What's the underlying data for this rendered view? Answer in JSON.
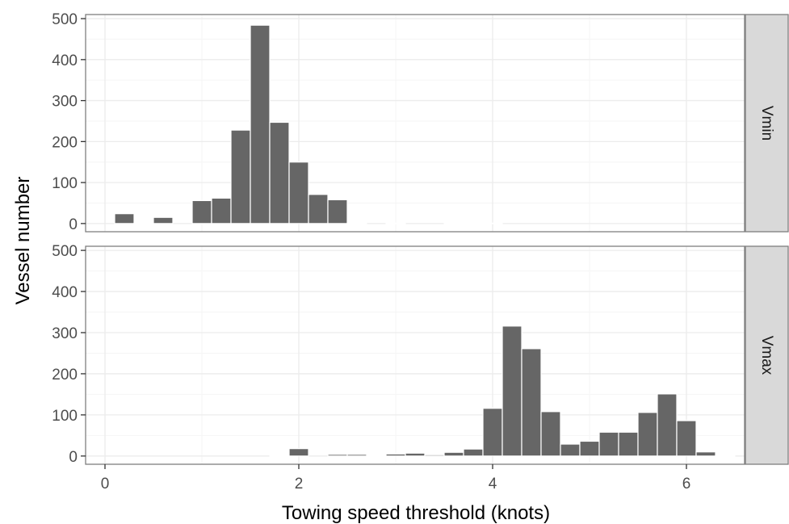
{
  "chart_data": {
    "type": "bar",
    "xlabel": "Towing speed threshold (knots)",
    "ylabel": "Vessel number",
    "xlim": [
      -0.2,
      6.6
    ],
    "ylim": [
      -20,
      510
    ],
    "xticks": [
      0,
      2,
      4,
      6
    ],
    "yticks": [
      0,
      100,
      200,
      300,
      400,
      500
    ],
    "bin_width": 0.2,
    "grid": true,
    "facet_strip_position": "right",
    "bar_color": "#666666",
    "panels": [
      {
        "name": "Vmin",
        "bins": [
          {
            "x": 0.2,
            "y": 24
          },
          {
            "x": 0.4,
            "y": 1
          },
          {
            "x": 0.6,
            "y": 15
          },
          {
            "x": 1.0,
            "y": 56
          },
          {
            "x": 1.2,
            "y": 62
          },
          {
            "x": 1.4,
            "y": 228
          },
          {
            "x": 1.6,
            "y": 484
          },
          {
            "x": 1.8,
            "y": 247
          },
          {
            "x": 2.0,
            "y": 150
          },
          {
            "x": 2.2,
            "y": 71
          },
          {
            "x": 2.4,
            "y": 58
          },
          {
            "x": 2.6,
            "y": 1
          },
          {
            "x": 3.0,
            "y": 1
          },
          {
            "x": 3.6,
            "y": 1
          },
          {
            "x": 3.8,
            "y": 1
          },
          {
            "x": 4.0,
            "y": 1
          }
        ]
      },
      {
        "name": "Vmax",
        "bins": [
          {
            "x": 1.8,
            "y": 1
          },
          {
            "x": 2.0,
            "y": 18
          },
          {
            "x": 2.4,
            "y": 4
          },
          {
            "x": 2.6,
            "y": 4
          },
          {
            "x": 2.8,
            "y": 1
          },
          {
            "x": 3.0,
            "y": 5
          },
          {
            "x": 3.2,
            "y": 7
          },
          {
            "x": 3.4,
            "y": 3
          },
          {
            "x": 3.6,
            "y": 9
          },
          {
            "x": 3.8,
            "y": 17
          },
          {
            "x": 4.0,
            "y": 116
          },
          {
            "x": 4.2,
            "y": 316
          },
          {
            "x": 4.4,
            "y": 261
          },
          {
            "x": 4.6,
            "y": 108
          },
          {
            "x": 4.8,
            "y": 29
          },
          {
            "x": 5.0,
            "y": 36
          },
          {
            "x": 5.2,
            "y": 58
          },
          {
            "x": 5.4,
            "y": 58
          },
          {
            "x": 5.6,
            "y": 106
          },
          {
            "x": 5.8,
            "y": 151
          },
          {
            "x": 6.0,
            "y": 86
          },
          {
            "x": 6.2,
            "y": 10
          },
          {
            "x": 6.4,
            "y": 1
          }
        ]
      }
    ]
  }
}
